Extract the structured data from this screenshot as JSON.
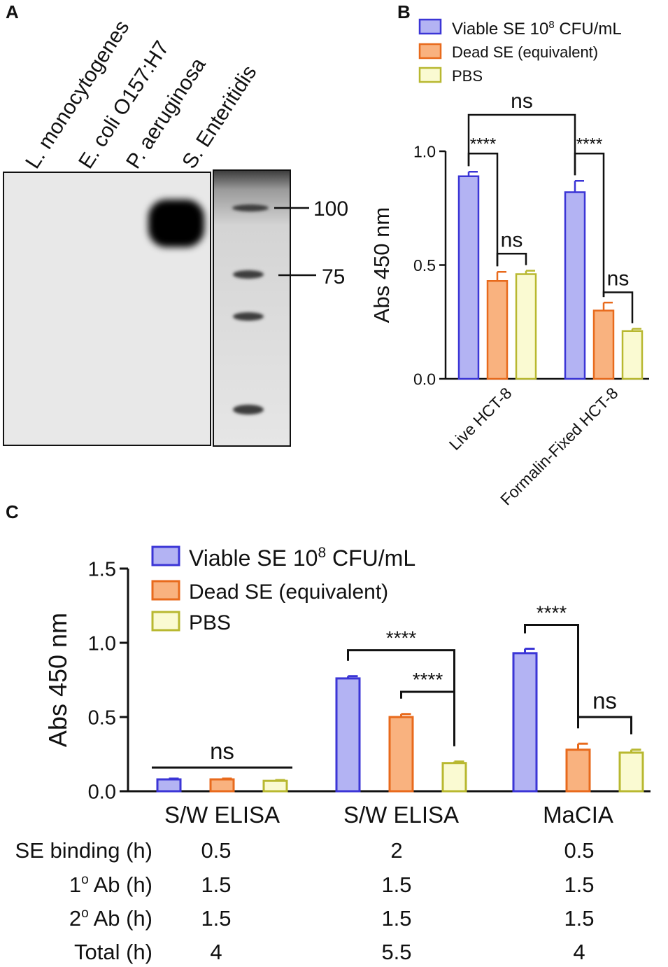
{
  "panel_a": {
    "letter": "A",
    "lanes": [
      "L. monocytogenes",
      "E. coli O157:H7",
      "P. aeruginosa",
      "S. Enteritidis"
    ],
    "markers": [
      {
        "label": "100"
      },
      {
        "label": "75"
      }
    ]
  },
  "colors": {
    "viable_fill": "#b3b3f3",
    "viable_stroke": "#3b35d6",
    "dead_fill": "#f9b27f",
    "dead_stroke": "#e86a1c",
    "pbs_fill": "#fafad2",
    "pbs_stroke": "#b8b830"
  },
  "legend": {
    "viable_prefix": "Viable SE 10",
    "viable_sup": "8",
    "viable_suffix": " CFU/mL",
    "dead": "Dead SE (equivalent)",
    "pbs": "PBS"
  },
  "chart_data": [
    {
      "panel": "B",
      "type": "bar",
      "ylabel": "Abs 450 nm",
      "ylim": [
        0,
        1.0
      ],
      "yticks": [
        "0.0",
        "0.5",
        "1.0"
      ],
      "categories": [
        "Live HCT-8",
        "Formalin-Fixed HCT-8"
      ],
      "series": [
        {
          "name": "Viable SE 10^8 CFU/mL",
          "values": [
            0.89,
            0.82
          ],
          "errors": [
            0.02,
            0.05
          ]
        },
        {
          "name": "Dead SE (equivalent)",
          "values": [
            0.43,
            0.3
          ],
          "errors": [
            0.04,
            0.035
          ]
        },
        {
          "name": "PBS",
          "values": [
            0.46,
            0.21
          ],
          "errors": [
            0.015,
            0.01
          ]
        }
      ],
      "annotations": [
        {
          "text": "ns",
          "from": [
            0,
            0
          ],
          "to": [
            1,
            0
          ],
          "level": 1.16
        },
        {
          "text": "****",
          "from": [
            0,
            0
          ],
          "to": [
            0,
            1
          ],
          "level": 0.99
        },
        {
          "text": "ns",
          "from": [
            0,
            1
          ],
          "to": [
            0,
            2
          ],
          "level": 0.55
        },
        {
          "text": "****",
          "from": [
            1,
            0
          ],
          "to": [
            1,
            1
          ],
          "level": 0.99
        },
        {
          "text": "ns",
          "from": [
            1,
            1
          ],
          "to": [
            1,
            2
          ],
          "level": 0.38
        }
      ]
    },
    {
      "panel": "C",
      "type": "bar",
      "ylabel": "Abs 450 nm",
      "ylim": [
        0,
        1.5
      ],
      "yticks": [
        "0.0",
        "0.5",
        "1.0",
        "1.5"
      ],
      "categories": [
        "S/W ELISA",
        "S/W ELISA",
        "MaCIA"
      ],
      "series": [
        {
          "name": "Viable SE 10^8 CFU/mL",
          "values": [
            0.08,
            0.76,
            0.93
          ],
          "errors": [
            0.005,
            0.015,
            0.03
          ]
        },
        {
          "name": "Dead SE (equivalent)",
          "values": [
            0.08,
            0.5,
            0.28
          ],
          "errors": [
            0.005,
            0.02,
            0.04
          ]
        },
        {
          "name": "PBS",
          "values": [
            0.07,
            0.19,
            0.26
          ],
          "errors": [
            0.005,
            0.01,
            0.02
          ]
        }
      ],
      "annotations": [
        {
          "text": "ns",
          "from": [
            0,
            0
          ],
          "to": [
            0,
            2
          ],
          "level": 0.16,
          "flat": true
        },
        {
          "text": "****",
          "from": [
            1,
            0
          ],
          "to": [
            1,
            2
          ],
          "level": 0.95
        },
        {
          "text": "****",
          "from": [
            1,
            1
          ],
          "to": [
            1,
            2
          ],
          "level": 0.67
        },
        {
          "text": "****",
          "from": [
            2,
            0
          ],
          "to": [
            2,
            1
          ],
          "level": 1.12
        },
        {
          "text": "ns",
          "from": [
            2,
            1
          ],
          "to": [
            2,
            2
          ],
          "level": 0.5
        }
      ],
      "table": {
        "rows": [
          {
            "label": "SE binding (h)",
            "values": [
              "0.5",
              "2",
              "0.5"
            ]
          },
          {
            "label_main": "1",
            "label_sup": "o",
            "label_rest": " Ab (h)",
            "values": [
              "1.5",
              "1.5",
              "1.5"
            ]
          },
          {
            "label_main": "2",
            "label_sup": "o",
            "label_rest": " Ab (h)",
            "values": [
              "1.5",
              "1.5",
              "1.5"
            ]
          },
          {
            "label": "Total (h)",
            "values": [
              "4",
              "5.5",
              "4"
            ]
          }
        ]
      }
    }
  ]
}
